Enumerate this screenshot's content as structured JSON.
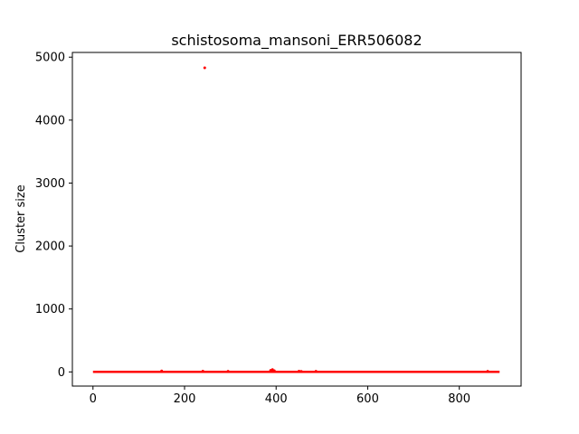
{
  "chart_data": {
    "type": "scatter",
    "title": "schistosoma_mansoni_ERR506082",
    "xlabel": "",
    "ylabel": "Cluster size",
    "xlim": [
      -45,
      935
    ],
    "ylim": [
      -225,
      5075
    ],
    "xticks": [
      0,
      200,
      400,
      600,
      800
    ],
    "yticks": [
      0,
      1000,
      2000,
      3000,
      4000,
      5000
    ],
    "grid": false,
    "marker_color": "#ff0000",
    "baseline": {
      "x_start": 0,
      "x_end": 888,
      "y": 2
    },
    "points": [
      {
        "x": 244,
        "y": 4830
      },
      {
        "x": 150,
        "y": 15
      },
      {
        "x": 240,
        "y": 12
      },
      {
        "x": 295,
        "y": 10
      },
      {
        "x": 388,
        "y": 25
      },
      {
        "x": 392,
        "y": 38
      },
      {
        "x": 396,
        "y": 20
      },
      {
        "x": 450,
        "y": 12
      },
      {
        "x": 455,
        "y": 9
      },
      {
        "x": 487,
        "y": 11
      },
      {
        "x": 862,
        "y": 10
      }
    ]
  }
}
